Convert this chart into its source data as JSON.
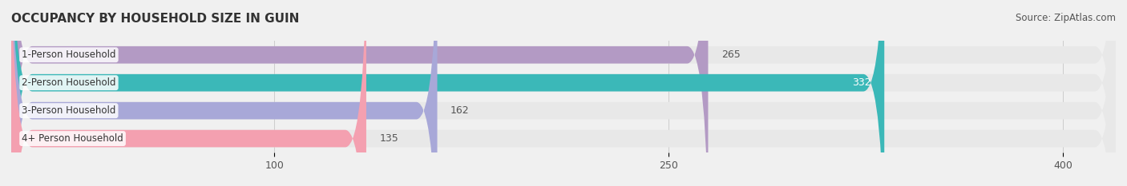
{
  "title": "OCCUPANCY BY HOUSEHOLD SIZE IN GUIN",
  "source": "Source: ZipAtlas.com",
  "categories": [
    "1-Person Household",
    "2-Person Household",
    "3-Person Household",
    "4+ Person Household"
  ],
  "values": [
    265,
    332,
    162,
    135
  ],
  "bar_colors": [
    "#b39ac4",
    "#3bb8b8",
    "#a8a8d8",
    "#f4a0b0"
  ],
  "label_colors": [
    "#555555",
    "#ffffff",
    "#555555",
    "#555555"
  ],
  "xlim": [
    0,
    420
  ],
  "xticks": [
    100,
    250,
    400
  ],
  "background_color": "#f0f0f0",
  "bar_bg_color": "#e8e8e8",
  "title_fontsize": 11,
  "source_fontsize": 8.5,
  "bar_label_fontsize": 9,
  "category_fontsize": 8.5
}
